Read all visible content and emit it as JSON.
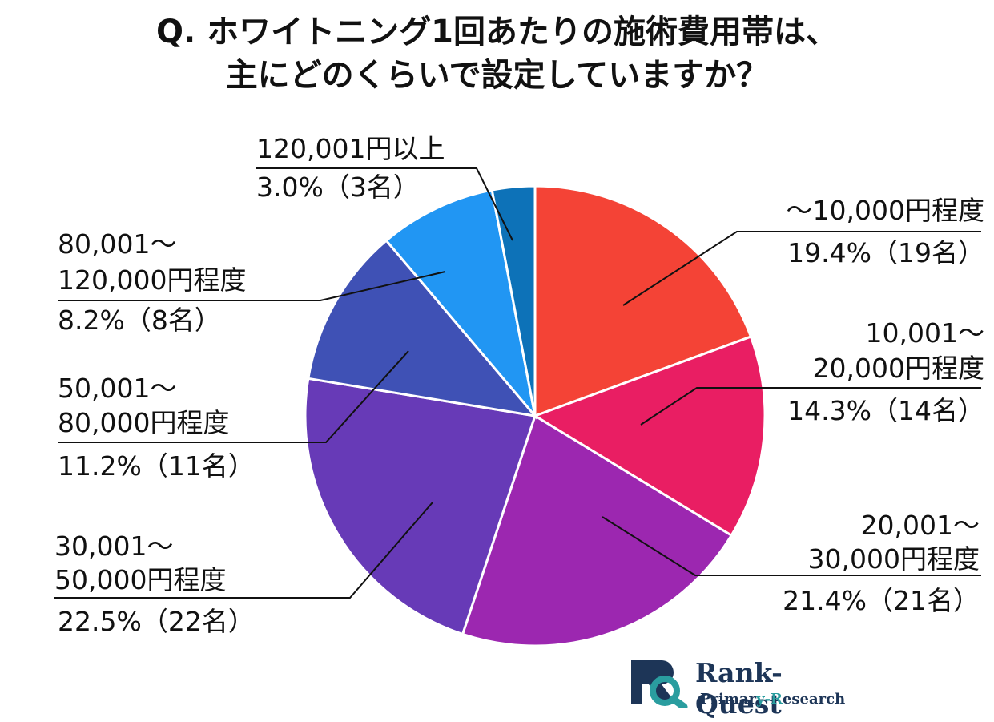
{
  "title": {
    "line1": "Q. ホワイトニング1回あたりの施術費用帯は、",
    "line2": "主にどのくらいで設定していますか？"
  },
  "chart_data": {
    "type": "pie",
    "slices": [
      {
        "category": "〜10,000円程度",
        "percent": 19.4,
        "count": 19,
        "value_label": "19.4%（19名）",
        "color": "#F44336"
      },
      {
        "category": "10,001〜20,000円程度",
        "percent": 14.3,
        "count": 14,
        "value_label": "14.3%（14名）",
        "color": "#E91E63"
      },
      {
        "category": "20,001〜30,000円程度",
        "percent": 21.4,
        "count": 21,
        "value_label": "21.4%（21名）",
        "color": "#9C27B0"
      },
      {
        "category": "30,001〜50,000円程度",
        "percent": 22.5,
        "count": 22,
        "value_label": "22.5%（22名）",
        "color": "#673AB7"
      },
      {
        "category": "50,001〜80,000円程度",
        "percent": 11.2,
        "count": 11,
        "value_label": "11.2%（11名）",
        "color": "#3F51B5"
      },
      {
        "category": "80,001〜120,000円程度",
        "percent": 8.2,
        "count": 8,
        "value_label": "8.2%（8名）",
        "color": "#2196F3"
      },
      {
        "category": "120,001円以上",
        "percent": 3.0,
        "count": 3,
        "value_label": "3.0%（3名）",
        "color": "#0D72B8"
      }
    ]
  },
  "labels": {
    "s0": {
      "line1": "〜10,000円程度",
      "value": "19.4%（19名）"
    },
    "s1": {
      "line1": "10,001〜",
      "line2": "20,000円程度",
      "value": "14.3%（14名）"
    },
    "s2": {
      "line1": "20,001〜",
      "line2": "30,000円程度",
      "value": "21.4%（21名）"
    },
    "s3": {
      "line1": "30,001〜",
      "line2": "50,000円程度",
      "value": "22.5%（22名）"
    },
    "s4": {
      "line1": "50,001〜",
      "line2": "80,000円程度",
      "value": "11.2%（11名）"
    },
    "s5": {
      "line1": "80,001〜",
      "line2": "120,000円程度",
      "value": "8.2%（8名）"
    },
    "s6": {
      "line1": "120,001円以上",
      "value": "3.0%（3名）"
    }
  },
  "logo": {
    "brand": "Rank-Quest",
    "tagline_a": "Primar",
    "tagline_b": "y-R",
    "tagline_c": "esearch"
  }
}
